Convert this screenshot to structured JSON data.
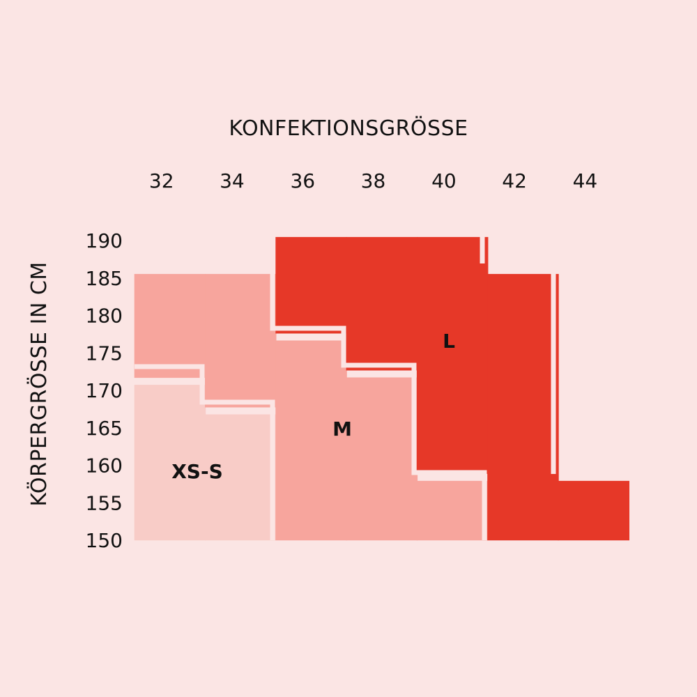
{
  "chart_data": {
    "type": "heatmap",
    "title": "KONFEKTIONSGRÖSSE",
    "xlabel": "KONFEKTIONSGRÖSSE",
    "ylabel": "KÖRPERGRÖSSE IN CM",
    "x_ticks": [
      "32",
      "34",
      "36",
      "38",
      "40",
      "42",
      "44"
    ],
    "y_ticks": [
      "190",
      "185",
      "180",
      "175",
      "170",
      "165",
      "160",
      "155",
      "150"
    ],
    "zones": [
      {
        "label": "XS-S",
        "color": "#f8ccc7",
        "columns": [
          {
            "size": "32",
            "height_min": 150,
            "height_max": 171
          },
          {
            "size": "34",
            "height_min": 150,
            "height_max": 167
          }
        ]
      },
      {
        "label": "M",
        "color": "#f7a59d",
        "columns": [
          {
            "size": "32",
            "height_min": 172,
            "height_max": 186
          },
          {
            "size": "34",
            "height_min": 168,
            "height_max": 186
          },
          {
            "size": "36",
            "height_min": 150,
            "height_max": 177
          },
          {
            "size": "38",
            "height_min": 150,
            "height_max": 172
          },
          {
            "size": "40",
            "height_min": 150,
            "height_max": 158
          }
        ]
      },
      {
        "label": "L",
        "color": "#e63828",
        "columns": [
          {
            "size": "36",
            "height_min": 178,
            "height_max": 191
          },
          {
            "size": "38",
            "height_min": 173,
            "height_max": 191
          },
          {
            "size": "40",
            "height_min": 159,
            "height_max": 191
          },
          {
            "size": "42",
            "height_min": 150,
            "height_max": 186
          },
          {
            "size": "44",
            "height_min": 150,
            "height_max": 158
          }
        ]
      }
    ],
    "grid": false,
    "legend": "none"
  }
}
